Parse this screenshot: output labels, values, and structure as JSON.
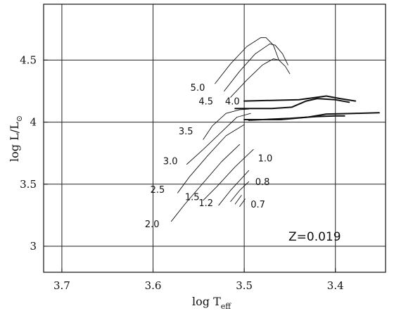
{
  "chart_data": {
    "type": "line",
    "title": "",
    "xlabel": "log T",
    "xlabel_sub": "eff",
    "ylabel": "log L/L",
    "ylabel_sub": "⊙",
    "xlim": [
      3.72,
      3.345
    ],
    "ylim": [
      2.79,
      4.95
    ],
    "xaxis_reversed": true,
    "grid": true,
    "x_ticks": [
      3.7,
      3.6,
      3.5,
      3.4
    ],
    "x_tick_labels": [
      "3.7",
      "3.6",
      "3.5",
      "3.4"
    ],
    "y_ticks": [
      3,
      3.5,
      4,
      4.5
    ],
    "y_tick_labels": [
      "3",
      "3.5",
      "4",
      "4.5"
    ],
    "annotation": "Z=0.019",
    "series": [
      {
        "name": "5.0",
        "style": "thin",
        "x": [
          3.532,
          3.515,
          3.497,
          3.482,
          3.476,
          3.468,
          3.462
        ],
        "y": [
          4.31,
          4.47,
          4.61,
          4.68,
          4.68,
          4.62,
          4.5
        ]
      },
      {
        "name": "4.5",
        "style": "thin",
        "x": [
          3.522,
          3.505,
          3.488,
          3.472,
          3.466,
          3.458,
          3.452
        ],
        "y": [
          4.25,
          4.41,
          4.55,
          4.63,
          4.62,
          4.55,
          4.46
        ]
      },
      {
        "name": "4.0",
        "style": "thin",
        "x": [
          3.515,
          3.497,
          3.48,
          3.468,
          3.462,
          3.455,
          3.45
        ],
        "y": [
          4.2,
          4.34,
          4.46,
          4.51,
          4.5,
          4.45,
          4.39
        ]
      },
      {
        "name": "3.5",
        "style": "thin",
        "x": [
          3.545,
          3.535,
          3.52,
          3.505,
          3.495
        ],
        "y": [
          3.86,
          3.97,
          4.07,
          4.1,
          4.105
        ]
      },
      {
        "name": "3.0",
        "style": "thin",
        "x": [
          3.563,
          3.545,
          3.525,
          3.508,
          3.493
        ],
        "y": [
          3.66,
          3.78,
          3.92,
          4.04,
          4.07
        ]
      },
      {
        "name": "2.5",
        "style": "thin",
        "x": [
          3.573,
          3.56,
          3.54,
          3.52,
          3.5
        ],
        "y": [
          3.43,
          3.56,
          3.73,
          3.89,
          3.98
        ]
      },
      {
        "name": "2.0",
        "style": "thin",
        "x": [
          3.58,
          3.565,
          3.545,
          3.525,
          3.505
        ],
        "y": [
          3.2,
          3.34,
          3.51,
          3.68,
          3.82
        ]
      },
      {
        "name": "1.5",
        "style": "thin",
        "x": [
          3.545,
          3.53,
          3.51,
          3.49
        ],
        "y": [
          3.37,
          3.48,
          3.64,
          3.78
        ]
      },
      {
        "name": "1.2",
        "style": "thin",
        "x": [
          3.528,
          3.515,
          3.495
        ],
        "y": [
          3.33,
          3.45,
          3.61
        ]
      },
      {
        "name": "1.0",
        "style": "thin",
        "x": [
          3.515,
          3.505,
          3.495
        ],
        "y": [
          3.36,
          3.45,
          3.52
        ]
      },
      {
        "name": "0.8",
        "style": "thin",
        "x": [
          3.51,
          3.503
        ],
        "y": [
          3.34,
          3.41
        ]
      },
      {
        "name": "0.7",
        "style": "thin",
        "x": [
          3.505,
          3.499
        ],
        "y": [
          3.32,
          3.38
        ]
      },
      {
        "name": "",
        "style": "thick",
        "x": [
          3.5,
          3.47,
          3.44,
          3.42,
          3.41,
          3.395,
          3.378
        ],
        "y": [
          4.17,
          4.175,
          4.18,
          4.2,
          4.21,
          4.19,
          4.17
        ]
      },
      {
        "name": "",
        "style": "thick",
        "x": [
          3.51,
          3.47,
          3.448,
          3.432,
          3.42,
          3.4,
          3.385
        ],
        "y": [
          4.11,
          4.11,
          4.12,
          4.17,
          4.19,
          4.18,
          4.16
        ]
      },
      {
        "name": "",
        "style": "thick",
        "x": [
          3.5,
          3.46,
          3.43,
          3.41,
          3.38,
          3.352
        ],
        "y": [
          4.02,
          4.02,
          4.04,
          4.065,
          4.07,
          4.075
        ]
      },
      {
        "name": "",
        "style": "thick",
        "x": [
          3.495,
          3.45,
          3.42,
          3.4,
          3.39
        ],
        "y": [
          4.015,
          4.03,
          4.045,
          4.05,
          4.05
        ]
      }
    ],
    "curve_labels": [
      {
        "text": "5.0",
        "x": 3.551,
        "y": 4.28
      },
      {
        "text": "4.5",
        "x": 3.542,
        "y": 4.17
      },
      {
        "text": "4.0",
        "x": 3.513,
        "y": 4.17
      },
      {
        "text": "3.5",
        "x": 3.564,
        "y": 3.93
      },
      {
        "text": "3.0",
        "x": 3.581,
        "y": 3.69
      },
      {
        "text": "2.5",
        "x": 3.595,
        "y": 3.46
      },
      {
        "text": "2.0",
        "x": 3.601,
        "y": 3.18
      },
      {
        "text": "1.5",
        "x": 3.557,
        "y": 3.4
      },
      {
        "text": "1.2",
        "x": 3.542,
        "y": 3.35
      },
      {
        "text": "1.0",
        "x": 3.477,
        "y": 3.71
      },
      {
        "text": "0.8",
        "x": 3.48,
        "y": 3.52
      },
      {
        "text": "0.7",
        "x": 3.485,
        "y": 3.34
      }
    ]
  }
}
